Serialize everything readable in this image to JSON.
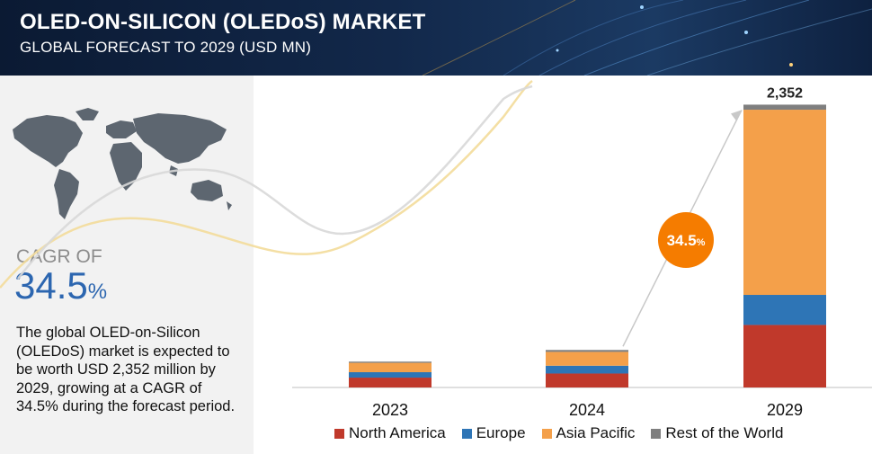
{
  "header": {
    "title": "OLED-ON-SILICON (OLEDoS) MARKET",
    "subtitle": "GLOBAL FORECAST TO 2029 (USD MN)"
  },
  "summary": {
    "cagr_label": "CAGR OF",
    "cagr_value": "34.5",
    "cagr_unit": "%",
    "description": "The global OLED-on-Silicon (OLEDoS) market is expected to be worth USD 2,352 million by 2029, growing at a CAGR of 34.5% during the forecast period."
  },
  "chart_data": {
    "type": "bar",
    "stacked": true,
    "categories": [
      "2023",
      "2024",
      "2029"
    ],
    "series": [
      {
        "name": "North America",
        "color": "#c0392b",
        "values": [
          82,
          116,
          520
        ]
      },
      {
        "name": "Europe",
        "color": "#2e75b6",
        "values": [
          45,
          65,
          250
        ]
      },
      {
        "name": "Asia Pacific",
        "color": "#f4a04a",
        "values": [
          78,
          115,
          1540
        ]
      },
      {
        "name": "Rest of the World",
        "color": "#7f7f7f",
        "values": [
          10,
          16,
          42
        ]
      }
    ],
    "total_label": {
      "category": "2029",
      "text": "2,352"
    },
    "cagr_bubble": {
      "text": "34.5",
      "unit": "%",
      "color": "#f57c00"
    },
    "ylim": [
      0,
      2400
    ],
    "grid": false,
    "legend": "bottom"
  }
}
